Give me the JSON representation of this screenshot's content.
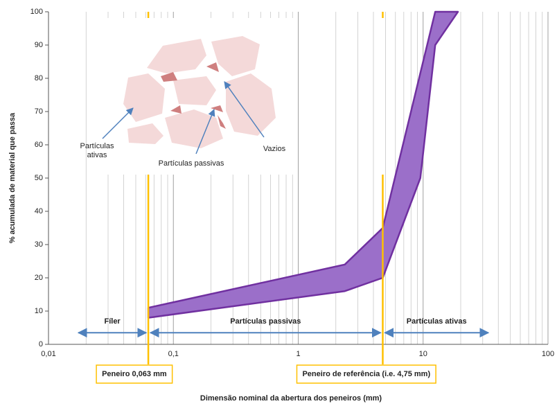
{
  "chart_data": {
    "type": "band",
    "y_label": "% acumulada de material que passa",
    "x_label": "Dimensão nominal da abertura dos peneiros (mm)",
    "log_x": true,
    "grid": true,
    "xlim": [
      0.01,
      100
    ],
    "ylim": [
      0,
      100
    ],
    "xticks": [
      {
        "value": 0.01,
        "label": "0,01"
      },
      {
        "value": 0.1,
        "label": "0,1"
      },
      1,
      10,
      100
    ],
    "yticks": [
      0,
      10,
      20,
      30,
      40,
      50,
      60,
      70,
      80,
      90,
      100
    ],
    "color": "#7030a0",
    "fill": "#9b6fc9",
    "series": [
      {
        "x": [
          0.063,
          2.36,
          4.75,
          12.5
        ],
        "values": [
          11,
          24,
          35,
          100
        ]
      },
      {
        "x": [
          0.063,
          2.36,
          4.75,
          9.5,
          12.5,
          19
        ],
        "values": [
          8,
          16,
          20,
          50,
          90,
          100
        ]
      }
    ],
    "reference_lines": [
      {
        "x": 0.063,
        "label": "Peneiro 0,063 mm"
      },
      {
        "x": 4.75,
        "label": "Peneiro de referência (i.e. 4,75 mm)"
      }
    ],
    "regions": [
      {
        "label": "Fíler",
        "x": [
          0.0167,
          0.063
        ],
        "y": 3.5
      },
      {
        "label": "Partículas passivas",
        "x": [
          0.063,
          4.75
        ],
        "y": 3.5
      },
      {
        "label": "Partículas ativas",
        "x": [
          4.75,
          34.6
        ],
        "y": 3.5
      }
    ],
    "inset_labels": [
      [
        "Partículas",
        "ativas"
      ],
      [
        "Partículas passivas"
      ],
      [
        "Vazios"
      ]
    ]
  }
}
